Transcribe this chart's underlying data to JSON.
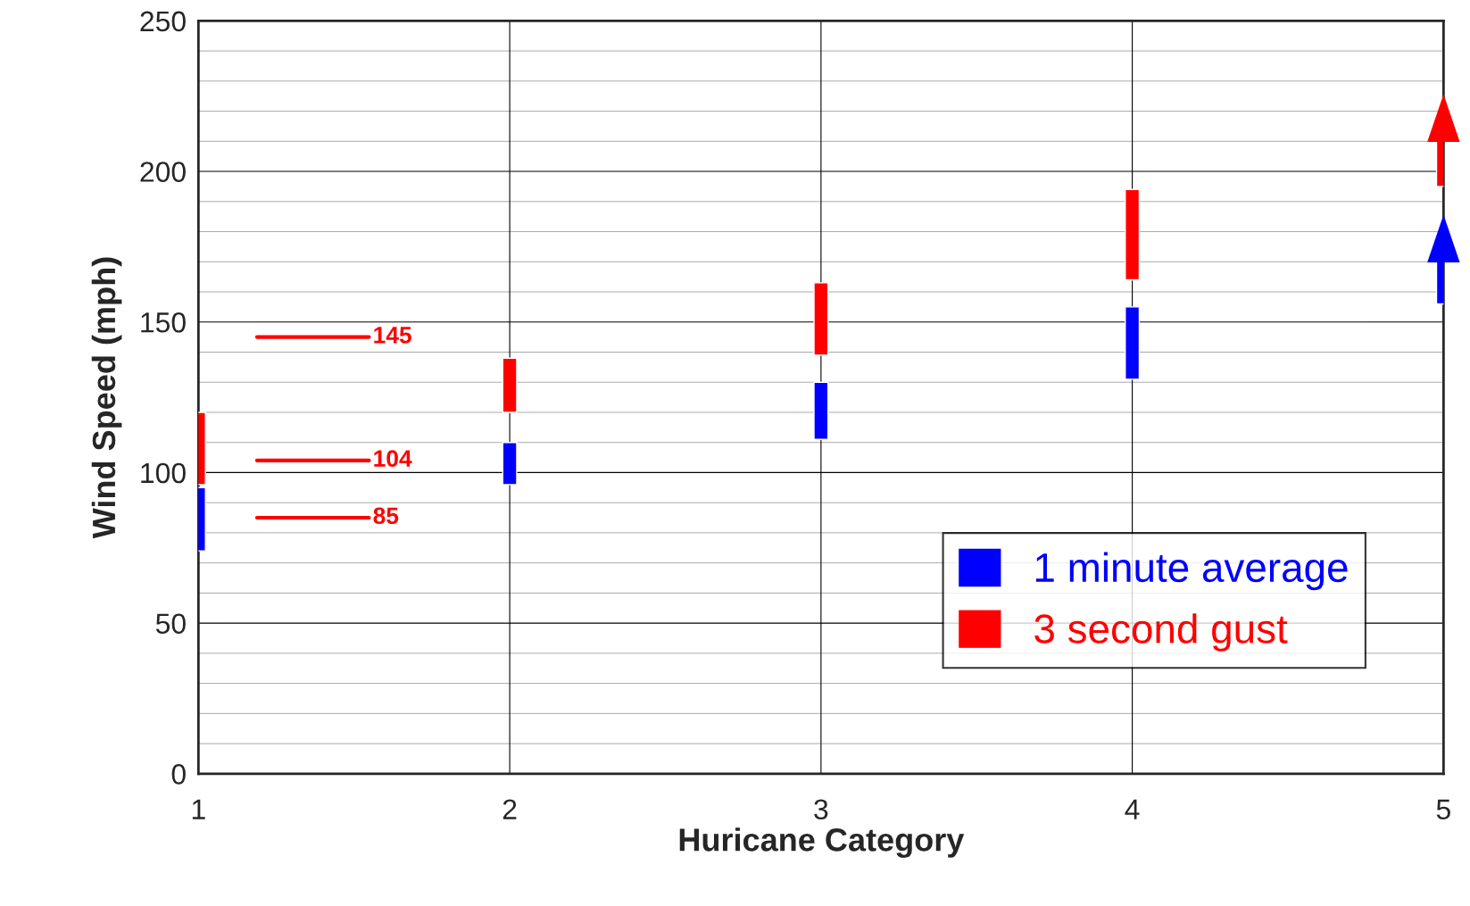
{
  "chart_data": {
    "type": "bar",
    "xlabel": "Huricane Category",
    "ylabel": "Wind Speed (mph)",
    "x": [
      1,
      2,
      3,
      4,
      5
    ],
    "xlim": [
      1,
      5
    ],
    "xticks": [
      1,
      2,
      3,
      4,
      5
    ],
    "ylim": [
      0,
      250
    ],
    "yticks": [
      0,
      {
        "value": 10,
        "label": null
      },
      {
        "value": 20,
        "label": null
      },
      {
        "value": 30,
        "label": null
      },
      {
        "value": 40,
        "label": null
      },
      50,
      {
        "value": 60,
        "label": null
      },
      {
        "value": 70,
        "label": null
      },
      {
        "value": 80,
        "label": null
      },
      {
        "value": 90,
        "label": null
      },
      100,
      {
        "value": 110,
        "label": null
      },
      {
        "value": 120,
        "label": null
      },
      {
        "value": 130,
        "label": null
      },
      {
        "value": 140,
        "label": null
      },
      150,
      {
        "value": 160,
        "label": null
      },
      {
        "value": 170,
        "label": null
      },
      {
        "value": 180,
        "label": null
      },
      {
        "value": 190,
        "label": null
      },
      200,
      {
        "value": 210,
        "label": null
      },
      {
        "value": 220,
        "label": null
      },
      {
        "value": 230,
        "label": null
      },
      {
        "value": 240,
        "label": null
      },
      250
    ],
    "grid": true,
    "legend": "bottom right",
    "series": [
      {
        "name": "1 minute average",
        "color": "#0000ff",
        "values": [
          21,
          14,
          19,
          24,
          14
        ],
        "base": [
          74,
          96,
          111,
          131,
          156
        ]
      },
      {
        "name": "3 second gust",
        "color": "#ff0000",
        "values": [
          24,
          18,
          24,
          30,
          15
        ],
        "base": [
          96,
          120,
          139,
          164,
          195
        ]
      }
    ],
    "ref_lines": [
      {
        "axis": "y",
        "value": 145,
        "label": "145",
        "color": "#ff0000"
      },
      {
        "axis": "y",
        "value": 104,
        "label": "104",
        "color": "#ff0000"
      },
      {
        "axis": "y",
        "value": 85,
        "label": "85",
        "color": "#ff0000"
      }
    ]
  }
}
